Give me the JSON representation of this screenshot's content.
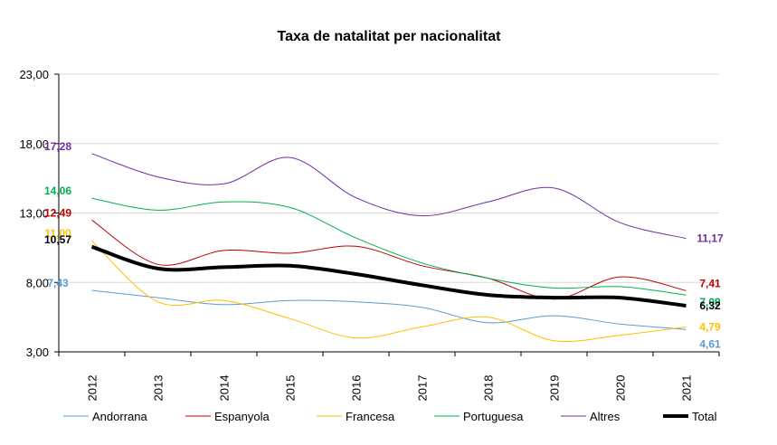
{
  "chart_data": {
    "type": "line",
    "title": "Taxa de natalitat per nacionalitat",
    "xlabel": "",
    "ylabel": "",
    "x": [
      "2012",
      "2013",
      "2014",
      "2015",
      "2016",
      "2017",
      "2018",
      "2019",
      "2020",
      "2021"
    ],
    "y_ticks": [
      "3,00",
      "8,00",
      "13,00",
      "18,00",
      "23,00"
    ],
    "ylim": [
      3,
      23
    ],
    "grid": "horizontal",
    "legend_position": "bottom",
    "series": [
      {
        "name": "Andorrana",
        "color": "#5b9bd5",
        "stroke": 1,
        "values": [
          7.43,
          6.9,
          6.4,
          6.7,
          6.6,
          6.2,
          5.1,
          5.6,
          5.0,
          4.61
        ],
        "start_label": "7,43",
        "end_label": "4,61"
      },
      {
        "name": "Espanyola",
        "color": "#c00000",
        "stroke": 1,
        "values": [
          12.49,
          9.3,
          10.3,
          10.1,
          10.6,
          9.2,
          8.3,
          6.8,
          8.4,
          7.41
        ],
        "start_label": "12,49",
        "end_label": "7,41"
      },
      {
        "name": "Francesa",
        "color": "#ffc000",
        "stroke": 1,
        "values": [
          11.0,
          6.6,
          6.7,
          5.4,
          4.0,
          4.8,
          5.5,
          3.8,
          4.2,
          4.79
        ],
        "start_label": "11,00",
        "end_label": "4,79"
      },
      {
        "name": "Portuguesa",
        "color": "#00b050",
        "stroke": 1,
        "values": [
          14.06,
          13.2,
          13.8,
          13.4,
          11.2,
          9.4,
          8.3,
          7.6,
          7.7,
          7.09
        ],
        "start_label": "14,06",
        "end_label": "7,09"
      },
      {
        "name": "Altres",
        "color": "#7030a0",
        "stroke": 1,
        "values": [
          17.28,
          15.6,
          15.1,
          17.0,
          14.1,
          12.8,
          13.8,
          14.8,
          12.3,
          11.17
        ],
        "start_label": "17,28",
        "end_label": "11,17"
      },
      {
        "name": "Total",
        "color": "#000000",
        "stroke": 4,
        "values": [
          10.57,
          9.0,
          9.1,
          9.2,
          8.6,
          7.8,
          7.1,
          6.9,
          6.9,
          6.32
        ],
        "start_label": "10,57",
        "end_label": "6,32"
      }
    ]
  }
}
